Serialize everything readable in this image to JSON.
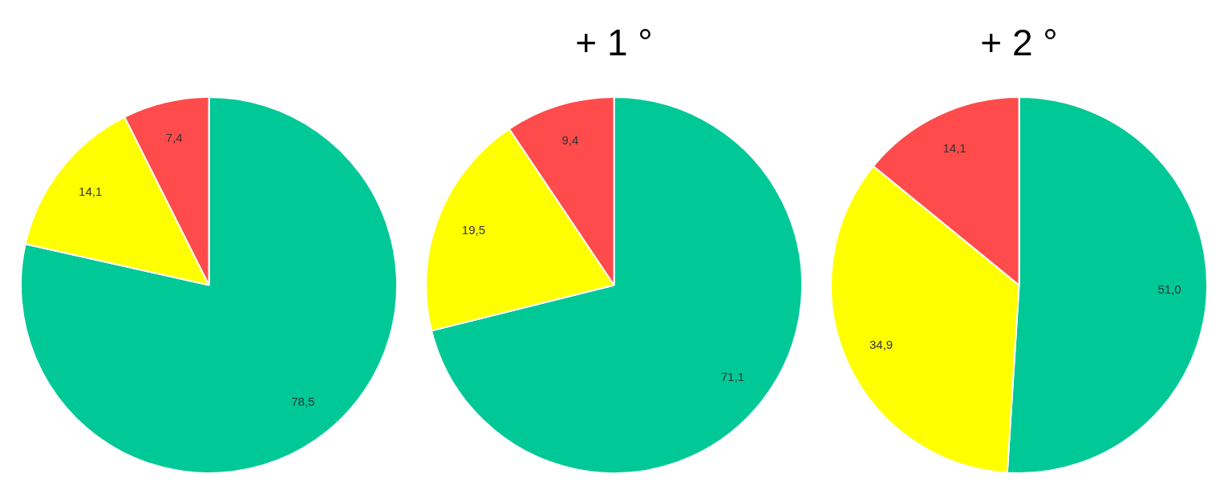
{
  "chart_data": [
    {
      "type": "pie",
      "categories": [
        null,
        null,
        null
      ],
      "values": [
        78.5,
        14.1,
        7.4
      ],
      "value_labels": [
        "78,5",
        "14,1",
        "7,4"
      ],
      "colors": [
        "#00c896",
        "#ffff00",
        "#ff4b4b"
      ],
      "legend": false
    },
    {
      "type": "pie",
      "title": "+ 1 °",
      "categories": [
        null,
        null,
        null
      ],
      "values": [
        71.1,
        19.5,
        9.4
      ],
      "value_labels": [
        "71,1",
        "19,5",
        "9,4"
      ],
      "colors": [
        "#00c896",
        "#ffff00",
        "#ff4b4b"
      ],
      "legend": false
    },
    {
      "type": "pie",
      "title": "+ 2 °",
      "categories": [
        null,
        null,
        null
      ],
      "values": [
        51.0,
        34.9,
        14.1
      ],
      "value_labels": [
        "51,0",
        "34,9",
        "14,1"
      ],
      "colors": [
        "#00c896",
        "#ffff00",
        "#ff4b4b"
      ],
      "legend": false
    }
  ]
}
